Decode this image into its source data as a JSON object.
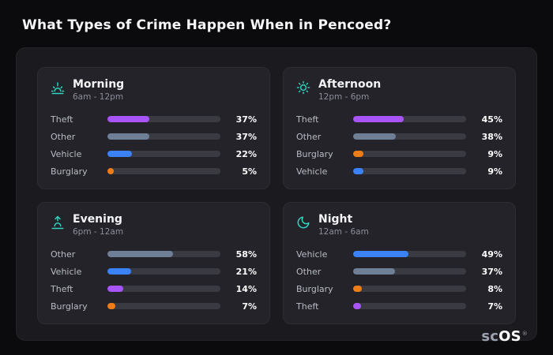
{
  "page": {
    "title": "What Types of Crime Happen When in Pencoed?"
  },
  "brand": {
    "prefix": "sc",
    "name": "OS",
    "registered": "®"
  },
  "colors": {
    "background": "#0b0b0e",
    "board": "#1a1a1f",
    "card": "#232329",
    "track": "#3a3a42",
    "accent_teal": "#2dd4bf",
    "theft_purple": "#a855f7",
    "other_slate": "#6e7f96",
    "vehicle_blue": "#3b82f6",
    "burglary_orange": "#ee7d18"
  },
  "chart_data": {
    "type": "bar",
    "orientation": "horizontal",
    "title": "What Types of Crime Happen When in Pencoed?",
    "unit": "%",
    "value_range": [
      0,
      100
    ],
    "panels": [
      {
        "id": "morning",
        "label": "Morning",
        "time_range": "6am - 12pm",
        "icon": "sunrise-icon",
        "bars": [
          {
            "category": "Theft",
            "value": 37,
            "color": "#a855f7"
          },
          {
            "category": "Other",
            "value": 37,
            "color": "#6e7f96"
          },
          {
            "category": "Vehicle",
            "value": 22,
            "color": "#3b82f6"
          },
          {
            "category": "Burglary",
            "value": 5,
            "color": "#ee7d18"
          }
        ]
      },
      {
        "id": "afternoon",
        "label": "Afternoon",
        "time_range": "12pm - 6pm",
        "icon": "sun-icon",
        "bars": [
          {
            "category": "Theft",
            "value": 45,
            "color": "#a855f7"
          },
          {
            "category": "Other",
            "value": 38,
            "color": "#6e7f96"
          },
          {
            "category": "Burglary",
            "value": 9,
            "color": "#ee7d18"
          },
          {
            "category": "Vehicle",
            "value": 9,
            "color": "#3b82f6"
          }
        ]
      },
      {
        "id": "evening",
        "label": "Evening",
        "time_range": "6pm - 12am",
        "icon": "sunset-icon",
        "bars": [
          {
            "category": "Other",
            "value": 58,
            "color": "#6e7f96"
          },
          {
            "category": "Vehicle",
            "value": 21,
            "color": "#3b82f6"
          },
          {
            "category": "Theft",
            "value": 14,
            "color": "#a855f7"
          },
          {
            "category": "Burglary",
            "value": 7,
            "color": "#ee7d18"
          }
        ]
      },
      {
        "id": "night",
        "label": "Night",
        "time_range": "12am - 6am",
        "icon": "moon-icon",
        "bars": [
          {
            "category": "Vehicle",
            "value": 49,
            "color": "#3b82f6"
          },
          {
            "category": "Other",
            "value": 37,
            "color": "#6e7f96"
          },
          {
            "category": "Burglary",
            "value": 8,
            "color": "#ee7d18"
          },
          {
            "category": "Theft",
            "value": 7,
            "color": "#a855f7"
          }
        ]
      }
    ]
  }
}
